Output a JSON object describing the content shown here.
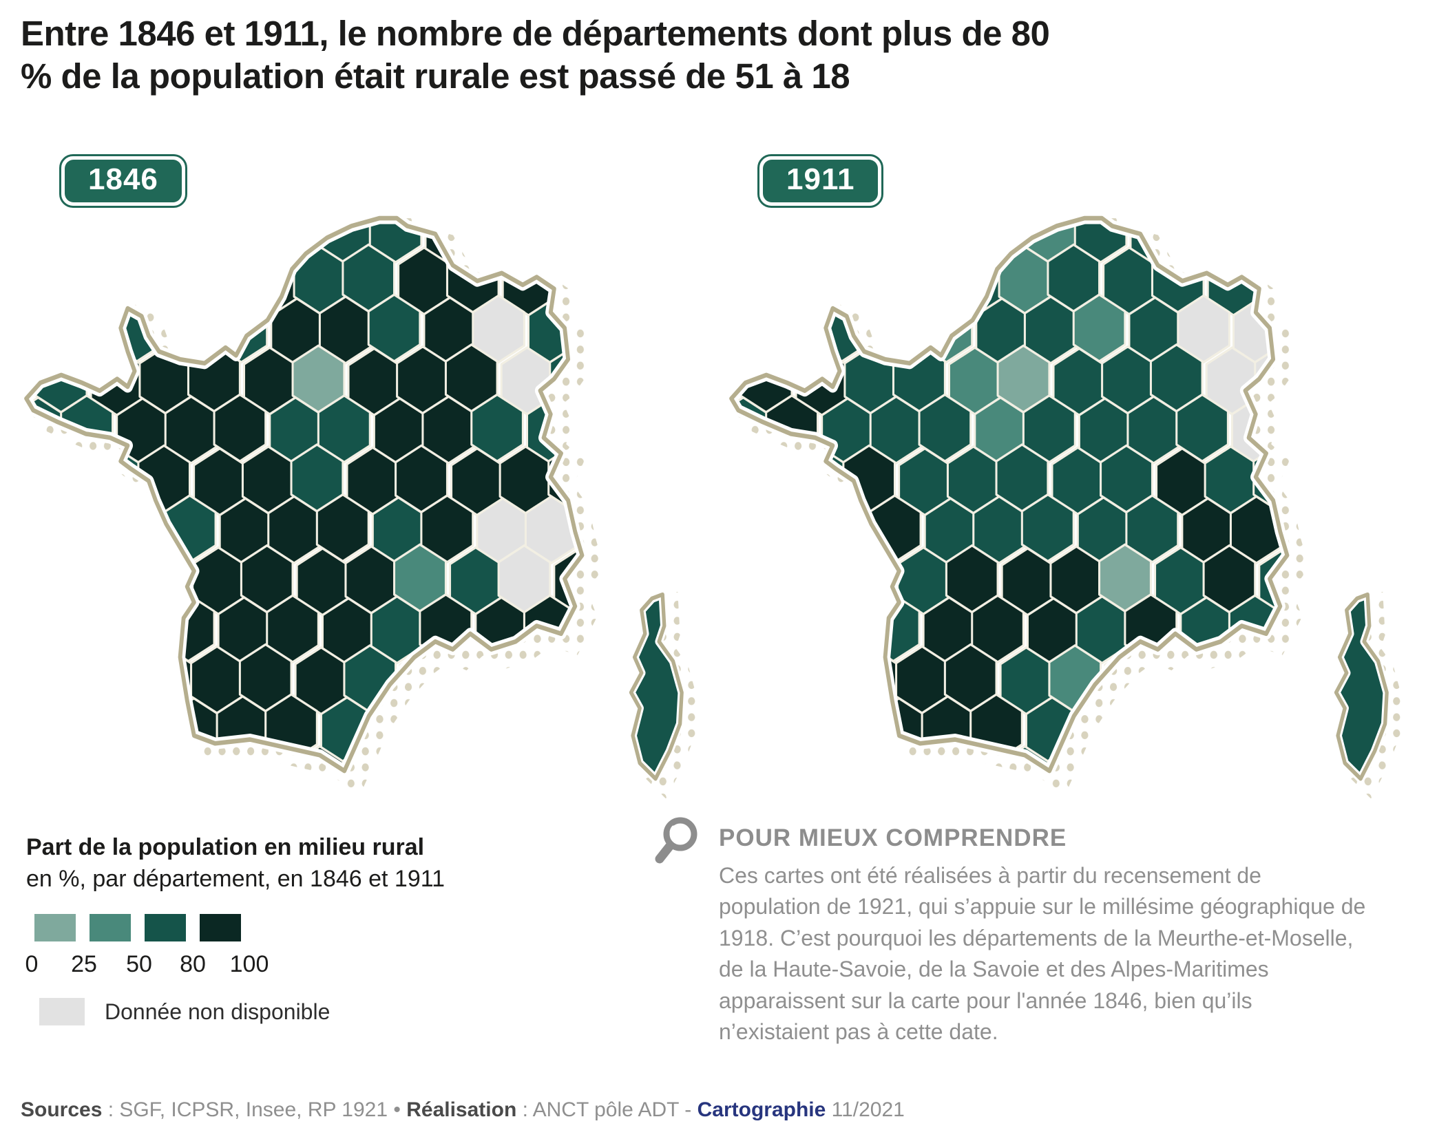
{
  "title": "Entre 1846 et 1911, le nombre de départements dont plus de 80 % de la population était rurale est passé de 51 à 18",
  "maps": [
    {
      "year": "1846",
      "corsica": "3",
      "grid": [
        "4444443344444",
        "4444433444444",
        "443334434g333",
        "344441444g333",
        "3344433443333",
        "3344434444444",
        "444344434gg44",
        "443444423g444",
        "4444444344444",
        "444444322g444",
        "4444443444444",
        "4444444444444"
      ]
    },
    {
      "year": "1911",
      "corsica": "3",
      "grid": [
        "3333332333333",
        "3333323333333",
        "333323323gg33",
        "443321333gg33",
        "3433323333g33",
        "3343333343333",
        "3344333334443",
        "3323444134333",
        "3323444343333",
        "3344432233333",
        "3334443333333",
        "3333333333333"
      ]
    }
  ],
  "legend": {
    "title": "Part de la population en milieu rural",
    "subtitle": "en %, par département, en 1846 et 1911",
    "ticks": [
      "0",
      "25",
      "50",
      "80",
      "100"
    ],
    "classes": [
      {
        "range": "0-25",
        "color": "#7fa99d"
      },
      {
        "range": "25-50",
        "color": "#49897b"
      },
      {
        "range": "50-80",
        "color": "#15544a"
      },
      {
        "range": "80-100",
        "color": "#0b2823"
      }
    ],
    "no_data_label": "Donnée non disponible",
    "no_data_color": "#e2e2e2"
  },
  "note": {
    "title": "POUR MIEUX COMPRENDRE",
    "body": "Ces cartes ont été réalisées à partir du recensement de population de 1921, qui s’appuie sur le millésime géographique de 1918. C’est pourquoi les départements de la Meurthe-et-Moselle, de la Haute-Savoie, de la Savoie et des Alpes-Maritimes apparaissent sur la carte pour l'année 1846, bien qu’ils n’existaient pas à cette date."
  },
  "footer": {
    "sources_label": "Sources",
    "sources_text": " : SGF, ICPSR, Insee, RP 1921 ",
    "separator": "•",
    "realisation_label": " Réalisation",
    "realisation_text": " : ANCT pôle ADT - ",
    "cartography_label": "Cartographie",
    "date": " 11/2021"
  },
  "colors": {
    "badge": "#206857",
    "title_text": "#1c1c1b",
    "note_text": "#8d8d8d",
    "coast": "#b5ae8e",
    "halo_dots": "#d8d3be",
    "hex_border": "#f2efe3",
    "footer_navy": "#27357e",
    "footer_gray": "#8f8f8f"
  }
}
